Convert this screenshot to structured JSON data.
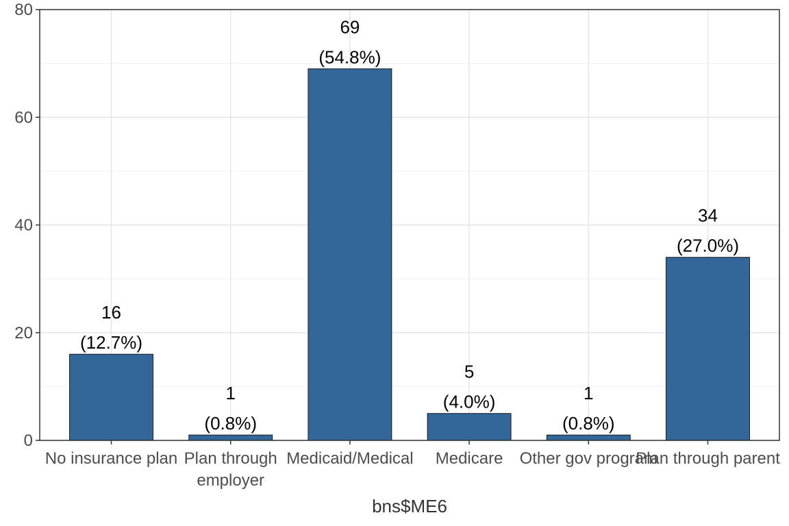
{
  "chart_data": {
    "type": "bar",
    "title": "",
    "xlabel": "bns$ME6",
    "ylabel": "",
    "ylim": [
      0,
      80
    ],
    "yticks": [
      0,
      20,
      40,
      60,
      80
    ],
    "grid": true,
    "bar_color": "#336699",
    "categories": [
      [
        "No insurance plan"
      ],
      [
        "Plan through",
        "employer"
      ],
      [
        "Medicaid/Medical"
      ],
      [
        "Medicare"
      ],
      [
        "Other gov program"
      ],
      [
        "Plan through parent"
      ]
    ],
    "values": [
      16,
      1,
      69,
      5,
      1,
      34
    ],
    "labels": [
      [
        "16",
        "(12.7%)"
      ],
      [
        "1",
        "(0.8%)"
      ],
      [
        "69",
        "(54.8%)"
      ],
      [
        "5",
        "(4.0%)"
      ],
      [
        "1",
        "(0.8%)"
      ],
      [
        "34",
        "(27.0%)"
      ]
    ]
  }
}
